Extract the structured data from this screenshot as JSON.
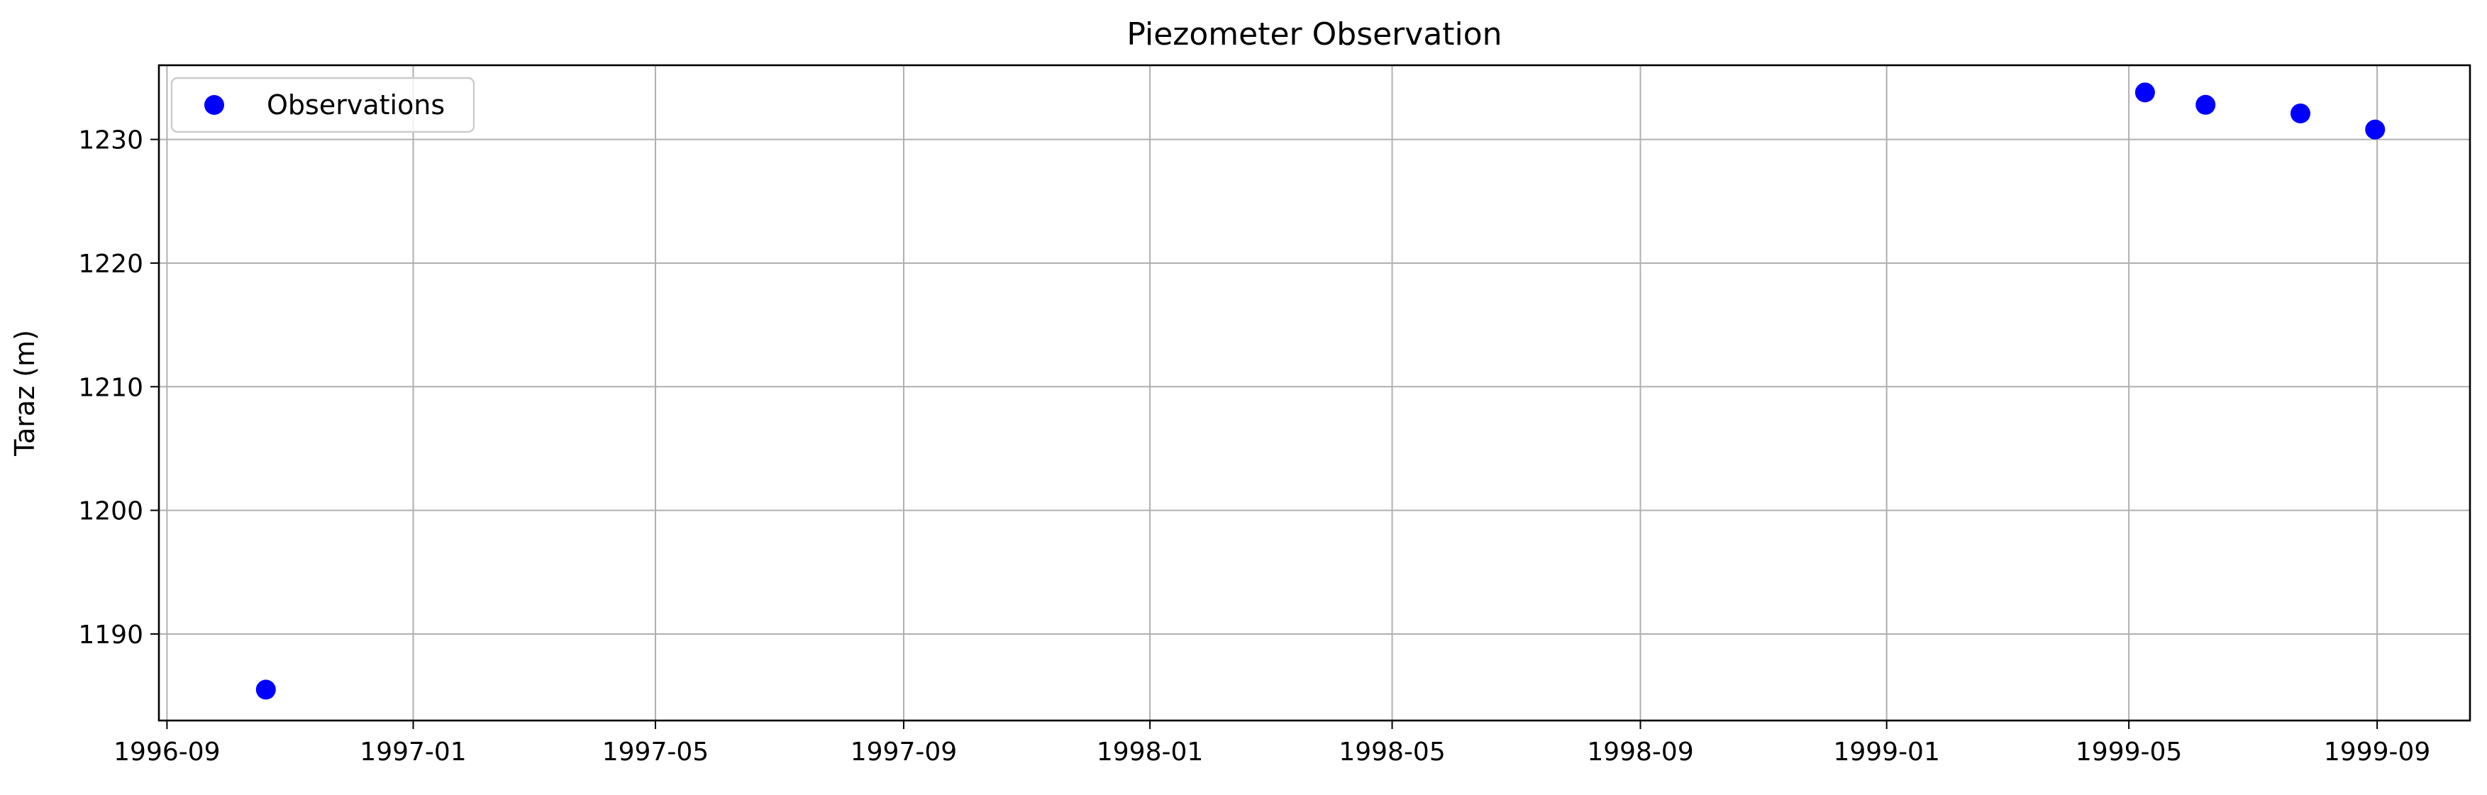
{
  "chart_data": {
    "type": "scatter",
    "title": "Piezometer Observation",
    "xlabel": "",
    "ylabel": "Taraz (m)",
    "x_axis_type": "date",
    "xlim": [
      "1996-08-28",
      "1999-10-17"
    ],
    "ylim": [
      1183,
      1236
    ],
    "x_ticks": [
      "1996-09",
      "1997-01",
      "1997-05",
      "1997-09",
      "1998-01",
      "1998-05",
      "1998-09",
      "1999-01",
      "1999-05",
      "1999-09"
    ],
    "y_ticks": [
      1190,
      1200,
      1210,
      1220,
      1230
    ],
    "grid": true,
    "legend": {
      "position": "top-left",
      "entries": [
        "Observations"
      ]
    },
    "series": [
      {
        "name": "Observations",
        "color": "#0000ff",
        "marker": "circle",
        "points": [
          {
            "x": "1996-10-20",
            "y": 1185.5
          },
          {
            "x": "1999-05-09",
            "y": 1233.8
          },
          {
            "x": "1999-06-08",
            "y": 1232.8
          },
          {
            "x": "1999-07-25",
            "y": 1232.1
          },
          {
            "x": "1999-08-31",
            "y": 1230.8
          }
        ]
      }
    ]
  }
}
